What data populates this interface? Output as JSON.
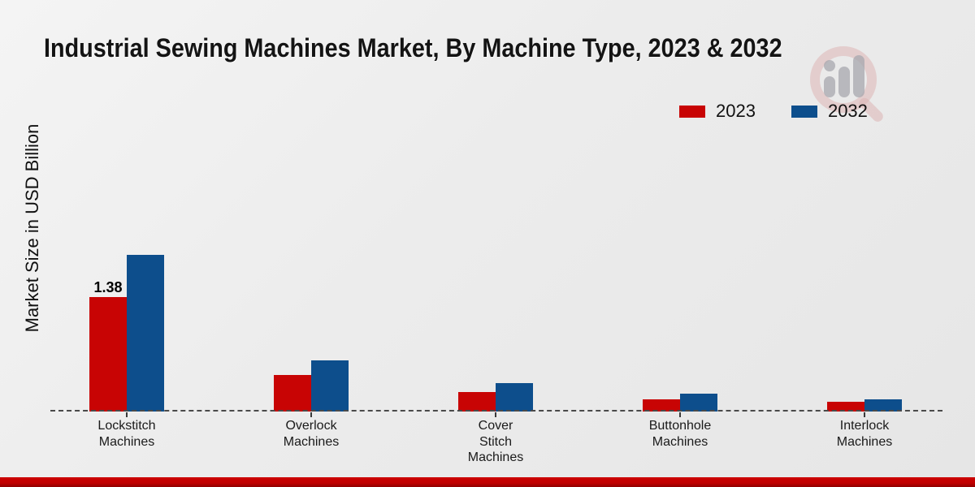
{
  "title": "Industrial Sewing Machines Market, By Machine Type, 2023 & 2032",
  "y_axis_label": "Market Size in USD Billion",
  "chart_data": {
    "type": "bar",
    "title": "Industrial Sewing Machines Market, By Machine Type, 2023 & 2032",
    "xlabel": "",
    "ylabel": "Market Size in USD Billion",
    "categories": [
      "Lockstitch Machines",
      "Overlock Machines",
      "Cover Stitch Machines",
      "Buttonhole Machines",
      "Interlock Machines"
    ],
    "category_label_lines": [
      [
        "Lockstitch",
        "Machines"
      ],
      [
        "Overlock",
        "Machines"
      ],
      [
        "Cover",
        "Stitch",
        "Machines"
      ],
      [
        "Buttonhole",
        "Machines"
      ],
      [
        "Interlock",
        "Machines"
      ]
    ],
    "series": [
      {
        "name": "2023",
        "color": "#c80404",
        "values": [
          1.38,
          0.44,
          0.23,
          0.15,
          0.12
        ]
      },
      {
        "name": "2032",
        "color": "#0d4e8c",
        "values": [
          1.88,
          0.61,
          0.34,
          0.21,
          0.15
        ]
      }
    ],
    "ylim": [
      0,
      2.1
    ],
    "grid": false,
    "axis_line_style": "dashed-zero-line",
    "legend_position": "top-right",
    "annotations": [
      {
        "series": "2023",
        "category": "Lockstitch Machines",
        "category_index": 0,
        "text": "1.38"
      }
    ]
  },
  "watermark": {
    "name": "magnifier-bar-chart-logo"
  },
  "footer": {
    "accent_color": "#c00000"
  }
}
